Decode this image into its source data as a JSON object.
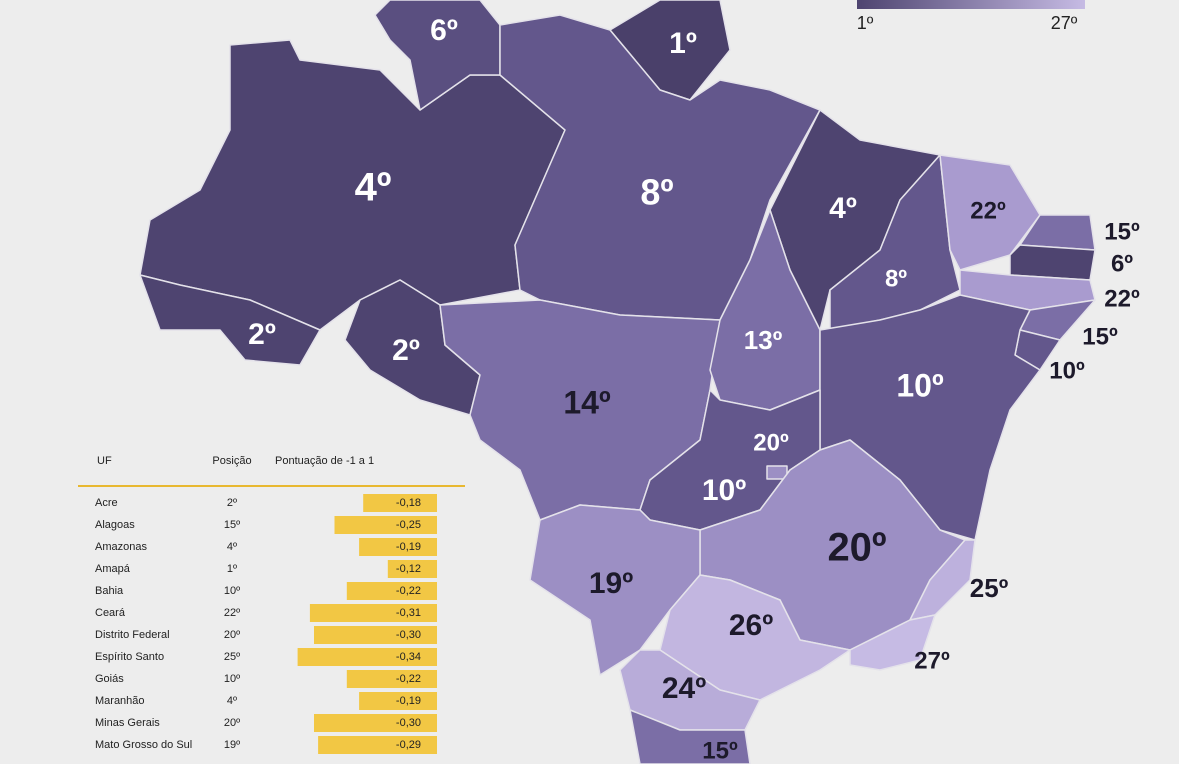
{
  "legend": {
    "min": "1º",
    "max": "27º"
  },
  "map_labels": [
    "6º",
    "1º",
    "4º",
    "8º",
    "4º",
    "22º",
    "15º",
    "6º",
    "22º",
    "15º",
    "10º",
    "8º",
    "13º",
    "2º",
    "2º",
    "14º",
    "10º",
    "20º",
    "10º",
    "20º",
    "19º",
    "25º",
    "26º",
    "27º",
    "24º",
    "15º"
  ],
  "table": {
    "header": [
      "UF",
      "Posição",
      "Pontuação de -1 a 1"
    ],
    "rows": [
      {
        "uf": "Acre",
        "posicao": "2º",
        "score": -0.18,
        "score_label": "-0,18"
      },
      {
        "uf": "Alagoas",
        "posicao": "15º",
        "score": -0.25,
        "score_label": "-0,25"
      },
      {
        "uf": "Amazonas",
        "posicao": "4º",
        "score": -0.19,
        "score_label": "-0,19"
      },
      {
        "uf": "Amapá",
        "posicao": "1º",
        "score": -0.12,
        "score_label": "-0,12"
      },
      {
        "uf": "Bahia",
        "posicao": "10º",
        "score": -0.22,
        "score_label": "-0,22"
      },
      {
        "uf": "Ceará",
        "posicao": "22º",
        "score": -0.31,
        "score_label": "-0,31"
      },
      {
        "uf": "Distrito Federal",
        "posicao": "20º",
        "score": -0.3,
        "score_label": "-0,30"
      },
      {
        "uf": "Espírito Santo",
        "posicao": "25º",
        "score": -0.34,
        "score_label": "-0,34"
      },
      {
        "uf": "Goiás",
        "posicao": "10º",
        "score": -0.22,
        "score_label": "-0,22"
      },
      {
        "uf": "Maranhão",
        "posicao": "4º",
        "score": -0.19,
        "score_label": "-0,19"
      },
      {
        "uf": "Minas Gerais",
        "posicao": "20º",
        "score": -0.3,
        "score_label": "-0,30"
      },
      {
        "uf": "Mato Grosso do Sul",
        "posicao": "19º",
        "score": -0.29,
        "score_label": "-0,29"
      }
    ]
  }
}
